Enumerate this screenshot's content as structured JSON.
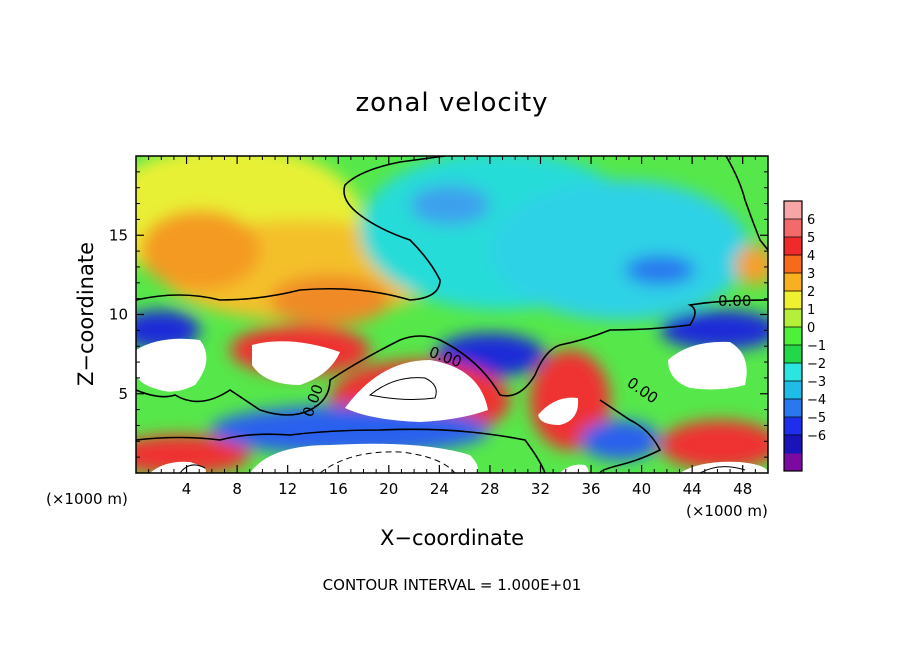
{
  "chart_data": {
    "type": "heatmap",
    "title": "zonal velocity",
    "xlabel": "X−coordinate",
    "ylabel": "Z−coordinate",
    "x_unit_label": "(×1000 m)",
    "xlim": [
      0,
      50
    ],
    "ylim": [
      0,
      20
    ],
    "x_ticks": [
      4,
      8,
      12,
      16,
      20,
      24,
      28,
      32,
      36,
      40,
      44,
      48
    ],
    "y_ticks": [
      5,
      10,
      15
    ],
    "colorbar": {
      "levels": [
        -6,
        -5,
        -4,
        -3,
        -2,
        -1,
        0,
        1,
        2,
        3,
        4,
        5,
        6
      ],
      "colors": [
        "#7b0ba0",
        "#1a13b8",
        "#1e2eea",
        "#2a78ee",
        "#1fbce8",
        "#2be6e0",
        "#22d84a",
        "#4ef03a",
        "#b4f03a",
        "#eef030",
        "#f7b020",
        "#f76a1c",
        "#ef2a2a",
        "#f26a6a",
        "#f7a6a6"
      ],
      "tick_labels": [
        "6",
        "5",
        "4",
        "3",
        "2",
        "1",
        "0",
        "−1",
        "−2",
        "−3",
        "−4",
        "−5",
        "−6"
      ]
    },
    "contour_labels": [
      "0.00",
      "0.00",
      "0.00",
      "0.00"
    ],
    "annotation": "CONTOUR INTERVAL = 1.000E+01",
    "grid": false,
    "legend": "colorbar-right"
  }
}
